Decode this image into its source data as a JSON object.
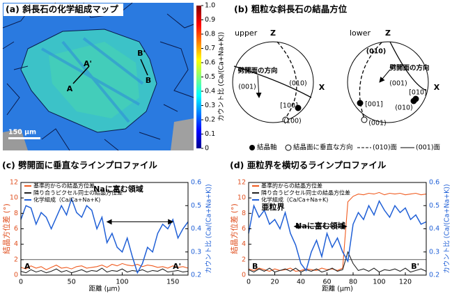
{
  "panel_a": {
    "title": "(a) 斜長石の化学組成マップ",
    "point_labels": [
      "A'",
      "A",
      "B'",
      "B"
    ],
    "scale_bar": "150 μm",
    "colorbar": {
      "ylim": [
        0,
        1
      ],
      "yticks": [
        0,
        0.1,
        0.2,
        0.3,
        0.4,
        0.5,
        0.6,
        0.7,
        0.8,
        0.9,
        {
          "value": 1,
          "label": "1.0"
        }
      ],
      "label": "カウント比 (Ca/(Ca+Na+K))"
    }
  },
  "panel_b": {
    "title": "(b) 粗粒な斜長石の結晶方位",
    "nets": [
      {
        "name": "upper",
        "axes": [
          "Z",
          "X"
        ],
        "labels": [
          "劈開面の方向",
          "(001)",
          "(010)",
          "[100]",
          "(100)"
        ]
      },
      {
        "name": "lower",
        "axes": [
          "Z",
          "X"
        ],
        "labels": [
          "(010)",
          "劈開面の方向",
          "(001)",
          "[010]",
          "[001]",
          "(010)",
          "(001)"
        ]
      }
    ],
    "legend": [
      "結晶軸",
      "結晶面に垂直な方向",
      "(010)面",
      "(001)面"
    ]
  },
  "chart_data": [
    {
      "type": "line",
      "title": "(c) 劈開面に垂直なラインプロファイル",
      "x_label": "距離 (μm)",
      "y_label": "結晶方位差 (°)",
      "y2_label": "カウント比 (Ca/(Ca+Na+K))",
      "annotations": [
        "Naに富む領域"
      ],
      "point_labels": [
        "A",
        "A'"
      ],
      "xlim": [
        0,
        165
      ],
      "xticks": [
        0,
        50,
        100,
        150
      ],
      "ylim": [
        0,
        12
      ],
      "yticks": [
        0,
        2,
        4,
        6,
        8,
        10,
        12
      ],
      "y2lim": [
        0.2,
        0.6
      ],
      "y2ticks": [
        0.2,
        0.3,
        0.4,
        0.5,
        0.6
      ],
      "x": [
        0,
        5,
        10,
        15,
        20,
        25,
        30,
        35,
        40,
        45,
        50,
        55,
        60,
        65,
        70,
        75,
        80,
        85,
        90,
        95,
        100,
        105,
        110,
        115,
        120,
        125,
        130,
        135,
        140,
        145,
        150,
        155,
        160,
        165
      ],
      "series": [
        {
          "name": "基準的からの結晶方位差",
          "color": "#f05a1e",
          "axis": "y",
          "values": [
            1.0,
            0.8,
            1.2,
            0.9,
            1.1,
            0.7,
            1.0,
            1.3,
            0.9,
            1.0,
            0.8,
            1.1,
            1.2,
            0.9,
            1.0,
            1.1,
            1.3,
            1.0,
            1.4,
            1.2,
            1.5,
            1.3,
            1.2,
            1.4,
            1.1,
            1.3,
            1.2,
            1.0,
            1.1,
            0.9,
            1.2,
            1.0,
            1.1,
            0.9
          ]
        },
        {
          "name": "隣り合うピクセル同士の結晶方位差",
          "color": "#222222",
          "axis": "y",
          "values": [
            0.5,
            0.3,
            0.7,
            0.4,
            0.6,
            0.3,
            0.5,
            0.8,
            0.4,
            0.6,
            0.3,
            0.5,
            0.7,
            0.4,
            0.6,
            0.5,
            0.9,
            0.4,
            0.6,
            0.5,
            0.8,
            0.4,
            0.6,
            0.5,
            0.7,
            0.4,
            0.6,
            0.5,
            0.8,
            0.4,
            0.5,
            0.6,
            0.4,
            0.5
          ]
        },
        {
          "name": "化学組成（Ca/Ca+Na+K)",
          "color": "#1f5fd6",
          "axis": "y2",
          "values": [
            0.44,
            0.5,
            0.49,
            0.42,
            0.47,
            0.45,
            0.4,
            0.45,
            0.5,
            0.46,
            0.53,
            0.47,
            0.45,
            0.5,
            0.48,
            0.4,
            0.45,
            0.34,
            0.38,
            0.32,
            0.3,
            0.36,
            0.28,
            0.21,
            0.25,
            0.32,
            0.3,
            0.38,
            0.42,
            0.4,
            0.44,
            0.36,
            0.4,
            0.43
          ]
        }
      ]
    },
    {
      "type": "line",
      "title": "(d) 亜粒界を横切るラインプロファイル",
      "x_label": "距離 (μm)",
      "y_label": "結晶方位差 (°)",
      "y2_label": "カウント比 (Ca/(Ca+Na+K))",
      "annotations": [
        "亜粒界",
        "Naに富む領域"
      ],
      "point_labels": [
        "B",
        "B'"
      ],
      "xlim": [
        0,
        136
      ],
      "xticks": [
        0,
        20,
        40,
        60,
        80,
        100,
        120
      ],
      "ylim": [
        0,
        12
      ],
      "yticks": [
        0,
        2,
        4,
        6,
        8,
        10,
        12
      ],
      "y2lim": [
        0.2,
        0.6
      ],
      "y2ticks": [
        0.2,
        0.3,
        0.4,
        0.5,
        0.6
      ],
      "x": [
        0,
        4,
        8,
        12,
        16,
        20,
        24,
        28,
        32,
        36,
        40,
        44,
        48,
        52,
        56,
        60,
        64,
        68,
        72,
        76,
        80,
        84,
        88,
        92,
        96,
        100,
        104,
        108,
        112,
        116,
        120,
        124,
        128,
        132,
        136
      ],
      "series": [
        {
          "name": "基準的からの結晶方位差",
          "color": "#f05a1e",
          "axis": "y",
          "values": [
            0.8,
            0.6,
            0.9,
            0.7,
            0.5,
            0.8,
            0.6,
            0.7,
            0.9,
            0.5,
            0.6,
            0.8,
            0.7,
            0.6,
            0.9,
            0.7,
            0.8,
            0.6,
            0.9,
            9.5,
            10.2,
            10.5,
            10.4,
            10.6,
            10.5,
            10.7,
            10.4,
            10.6,
            10.5,
            10.6,
            10.4,
            10.5,
            10.6,
            10.4,
            10.5
          ]
        },
        {
          "name": "隣り合うピクセル同士の結晶方位差",
          "color": "#222222",
          "axis": "y",
          "values": [
            0.7,
            0.4,
            0.8,
            0.5,
            0.9,
            0.4,
            0.6,
            0.8,
            0.5,
            0.9,
            0.4,
            0.7,
            0.5,
            0.8,
            0.4,
            0.6,
            0.9,
            0.5,
            0.7,
            3.0,
            1.5,
            0.6,
            0.8,
            0.5,
            0.9,
            0.4,
            0.7,
            0.6,
            0.8,
            0.5,
            0.9,
            0.4,
            0.6,
            0.8,
            0.5
          ]
        },
        {
          "name": "化学組成（Ca/Ca+Na+K)",
          "color": "#1f5fd6",
          "axis": "y2",
          "values": [
            0.38,
            0.5,
            0.45,
            0.48,
            0.42,
            0.44,
            0.4,
            0.47,
            0.38,
            0.33,
            0.25,
            0.22,
            0.3,
            0.35,
            0.28,
            0.38,
            0.32,
            0.36,
            0.3,
            0.26,
            0.42,
            0.47,
            0.44,
            0.5,
            0.46,
            0.52,
            0.48,
            0.45,
            0.5,
            0.47,
            0.49,
            0.44,
            0.46,
            0.42,
            0.43
          ]
        }
      ]
    }
  ]
}
